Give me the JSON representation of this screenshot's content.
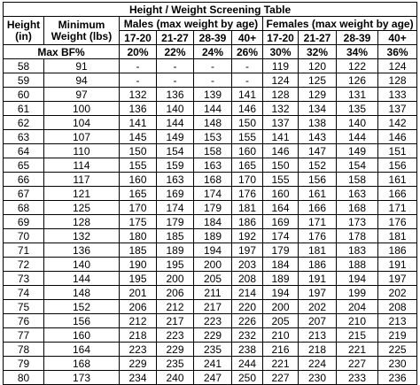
{
  "table": {
    "title": "Height / Weight Screening Table",
    "height_header": [
      "Height",
      "(in)"
    ],
    "min_weight_header": [
      "Minimum",
      "Weight (lbs)"
    ],
    "males_header": "Males (max weight by age)",
    "females_header": "Females (max weight by age)",
    "age_groups": [
      "17-20",
      "21-27",
      "28-39",
      "40+",
      "17-20",
      "21-27",
      "28-39",
      "40+"
    ],
    "max_bf_label": "Max BF%",
    "max_bf_values": [
      "20%",
      "22%",
      "24%",
      "26%",
      "30%",
      "32%",
      "34%",
      "36%"
    ],
    "rows": [
      [
        "58",
        "91",
        "-",
        "-",
        "-",
        "-",
        "119",
        "120",
        "122",
        "124"
      ],
      [
        "59",
        "94",
        "-",
        "-",
        "-",
        "-",
        "124",
        "125",
        "126",
        "128"
      ],
      [
        "60",
        "97",
        "132",
        "136",
        "139",
        "141",
        "128",
        "129",
        "131",
        "133"
      ],
      [
        "61",
        "100",
        "136",
        "140",
        "144",
        "146",
        "132",
        "134",
        "135",
        "137"
      ],
      [
        "62",
        "104",
        "141",
        "144",
        "148",
        "150",
        "137",
        "138",
        "140",
        "142"
      ],
      [
        "63",
        "107",
        "145",
        "149",
        "153",
        "155",
        "141",
        "143",
        "144",
        "146"
      ],
      [
        "64",
        "110",
        "150",
        "154",
        "158",
        "160",
        "146",
        "147",
        "149",
        "151"
      ],
      [
        "65",
        "114",
        "155",
        "159",
        "163",
        "165",
        "150",
        "152",
        "154",
        "156"
      ],
      [
        "66",
        "117",
        "160",
        "163",
        "168",
        "170",
        "155",
        "156",
        "158",
        "161"
      ],
      [
        "67",
        "121",
        "165",
        "169",
        "174",
        "176",
        "160",
        "161",
        "163",
        "166"
      ],
      [
        "68",
        "125",
        "170",
        "174",
        "179",
        "181",
        "164",
        "166",
        "168",
        "171"
      ],
      [
        "69",
        "128",
        "175",
        "179",
        "184",
        "186",
        "169",
        "171",
        "173",
        "176"
      ],
      [
        "70",
        "132",
        "180",
        "185",
        "189",
        "192",
        "174",
        "176",
        "178",
        "181"
      ],
      [
        "71",
        "136",
        "185",
        "189",
        "194",
        "197",
        "179",
        "181",
        "183",
        "186"
      ],
      [
        "72",
        "140",
        "190",
        "195",
        "200",
        "203",
        "184",
        "186",
        "188",
        "191"
      ],
      [
        "73",
        "144",
        "195",
        "200",
        "205",
        "208",
        "189",
        "191",
        "194",
        "197"
      ],
      [
        "74",
        "148",
        "201",
        "206",
        "211",
        "214",
        "194",
        "197",
        "199",
        "202"
      ],
      [
        "75",
        "152",
        "206",
        "212",
        "217",
        "220",
        "200",
        "202",
        "204",
        "208"
      ],
      [
        "76",
        "156",
        "212",
        "217",
        "223",
        "226",
        "205",
        "207",
        "210",
        "213"
      ],
      [
        "77",
        "160",
        "218",
        "223",
        "229",
        "232",
        "210",
        "213",
        "215",
        "219"
      ],
      [
        "78",
        "164",
        "223",
        "229",
        "235",
        "238",
        "216",
        "218",
        "221",
        "225"
      ],
      [
        "79",
        "168",
        "229",
        "235",
        "241",
        "244",
        "221",
        "224",
        "227",
        "230"
      ],
      [
        "80",
        "173",
        "234",
        "240",
        "247",
        "250",
        "227",
        "230",
        "233",
        "236"
      ]
    ]
  }
}
